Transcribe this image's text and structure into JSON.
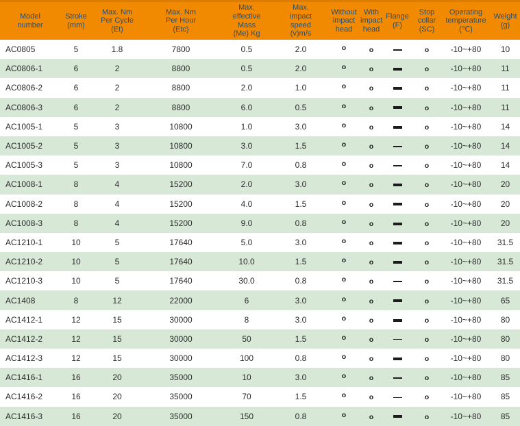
{
  "colors": {
    "header_bg": "#F18A01",
    "header_top_line": "#DC7C00",
    "header_text": "#2E4D66",
    "row_bg": "#FFFFFF",
    "row_alt_bg": "#D7E8D6",
    "data_text": "#2B2B2B",
    "mark_color": "#1C1C1C",
    "dash_color": "#1C1C1C"
  },
  "table": {
    "columns": [
      {
        "key": "model",
        "label": "Model\nnumber"
      },
      {
        "key": "stroke",
        "label": "Stroke\n(mm)"
      },
      {
        "key": "cycle",
        "label": "Max. Nm\nPer Cycle\n(Et)"
      },
      {
        "key": "hour",
        "label": "Max. Nm\nPer Hour\n(Etc)"
      },
      {
        "key": "mass",
        "label": "Max.\neffective\nMass\n(Me) Kg"
      },
      {
        "key": "speed",
        "label": "Max.\nimpact\nspeed\n(v)m/s"
      },
      {
        "key": "without",
        "label": "Without\nimpact\nhead"
      },
      {
        "key": "with",
        "label": "With\nimpact\nhead"
      },
      {
        "key": "flange",
        "label": "Flange\n(F)"
      },
      {
        "key": "stop",
        "label": "Stop\ncollar\n(SC)"
      },
      {
        "key": "temp",
        "label": "Operating\ntemperature\n(℃)"
      },
      {
        "key": "weight",
        "label": "Weight\n(g)"
      }
    ],
    "rows": [
      {
        "model": "AC0805",
        "stroke": "5",
        "cycle": "1.8",
        "hour": "7800",
        "mass": "0.5",
        "speed": "2.0",
        "without": "o",
        "with": "o",
        "flange": "thin",
        "stop": "o",
        "temp": "-10~+80",
        "weight": "10"
      },
      {
        "model": "AC0806-1",
        "stroke": "6",
        "cycle": "2",
        "hour": "8800",
        "mass": "0.5",
        "speed": "2.0",
        "without": "o",
        "with": "o",
        "flange": "bold",
        "stop": "o",
        "temp": "-10~+80",
        "weight": "11"
      },
      {
        "model": "AC0806-2",
        "stroke": "6",
        "cycle": "2",
        "hour": "8800",
        "mass": "2.0",
        "speed": "1.0",
        "without": "o",
        "with": "o",
        "flange": "bold",
        "stop": "o",
        "temp": "-10~+80",
        "weight": "11"
      },
      {
        "model": "AC0806-3",
        "stroke": "6",
        "cycle": "2",
        "hour": "8800",
        "mass": "6.0",
        "speed": "0.5",
        "without": "o",
        "with": "o",
        "flange": "bold",
        "stop": "o",
        "temp": "-10~+80",
        "weight": "11"
      },
      {
        "model": "AC1005-1",
        "stroke": "5",
        "cycle": "3",
        "hour": "10800",
        "mass": "1.0",
        "speed": "3.0",
        "without": "o",
        "with": "o",
        "flange": "bold",
        "stop": "o",
        "temp": "-10~+80",
        "weight": "14"
      },
      {
        "model": "AC1005-2",
        "stroke": "5",
        "cycle": "3",
        "hour": "10800",
        "mass": "3.0",
        "speed": "1.5",
        "without": "o",
        "with": "o",
        "flange": "thin",
        "stop": "o",
        "temp": "-10~+80",
        "weight": "14"
      },
      {
        "model": "AC1005-3",
        "stroke": "5",
        "cycle": "3",
        "hour": "10800",
        "mass": "7.0",
        "speed": "0.8",
        "without": "o",
        "with": "o",
        "flange": "thin",
        "stop": "o",
        "temp": "-10~+80",
        "weight": "14"
      },
      {
        "model": "AC1008-1",
        "stroke": "8",
        "cycle": "4",
        "hour": "15200",
        "mass": "2.0",
        "speed": "3.0",
        "without": "o",
        "with": "o",
        "flange": "bold",
        "stop": "o",
        "temp": "-10~+80",
        "weight": "20"
      },
      {
        "model": "AC1008-2",
        "stroke": "8",
        "cycle": "4",
        "hour": "15200",
        "mass": "4.0",
        "speed": "1.5",
        "without": "o",
        "with": "o",
        "flange": "bold",
        "stop": "o",
        "temp": "-10~+80",
        "weight": "20"
      },
      {
        "model": "AC1008-3",
        "stroke": "8",
        "cycle": "4",
        "hour": "15200",
        "mass": "9.0",
        "speed": "0.8",
        "without": "o",
        "with": "o",
        "flange": "bold",
        "stop": "o",
        "temp": "-10~+80",
        "weight": "20"
      },
      {
        "model": "AC1210-1",
        "stroke": "10",
        "cycle": "5",
        "hour": "17640",
        "mass": "5.0",
        "speed": "3.0",
        "without": "o",
        "with": "o",
        "flange": "bold",
        "stop": "o",
        "temp": "-10~+80",
        "weight": "31.5"
      },
      {
        "model": "AC1210-2",
        "stroke": "10",
        "cycle": "5",
        "hour": "17640",
        "mass": "10.0",
        "speed": "1.5",
        "without": "o",
        "with": "o",
        "flange": "bold",
        "stop": "o",
        "temp": "-10~+80",
        "weight": "31.5"
      },
      {
        "model": "AC1210-3",
        "stroke": "10",
        "cycle": "5",
        "hour": "17640",
        "mass": "30.0",
        "speed": "0.8",
        "without": "o",
        "with": "o",
        "flange": "thin",
        "stop": "o",
        "temp": "-10~+80",
        "weight": "31.5"
      },
      {
        "model": "AC1408",
        "stroke": "8",
        "cycle": "12",
        "hour": "22000",
        "mass": "6",
        "speed": "3.0",
        "without": "o",
        "with": "o",
        "flange": "bold",
        "stop": "o",
        "temp": "-10~+80",
        "weight": "65"
      },
      {
        "model": "AC1412-1",
        "stroke": "12",
        "cycle": "15",
        "hour": "30000",
        "mass": "8",
        "speed": "3.0",
        "without": "o",
        "with": "o",
        "flange": "bold",
        "stop": "o",
        "temp": "-10~+80",
        "weight": "80"
      },
      {
        "model": "AC1412-2",
        "stroke": "12",
        "cycle": "15",
        "hour": "30000",
        "mass": "50",
        "speed": "1.5",
        "without": "o",
        "with": "o",
        "flange": "thin",
        "stop": "o",
        "temp": "-10~+80",
        "weight": "80"
      },
      {
        "model": "AC1412-3",
        "stroke": "12",
        "cycle": "15",
        "hour": "30000",
        "mass": "100",
        "speed": "0.8",
        "without": "o",
        "with": "o",
        "flange": "bold",
        "stop": "o",
        "temp": "-10~+80",
        "weight": "80"
      },
      {
        "model": "AC1416-1",
        "stroke": "16",
        "cycle": "20",
        "hour": "35000",
        "mass": "10",
        "speed": "3.0",
        "without": "o",
        "with": "o",
        "flange": "thin",
        "stop": "o",
        "temp": "-10~+80",
        "weight": "85"
      },
      {
        "model": "AC1416-2",
        "stroke": "16",
        "cycle": "20",
        "hour": "35000",
        "mass": "70",
        "speed": "1.5",
        "without": "o",
        "with": "o",
        "flange": "thin",
        "stop": "o",
        "temp": "-10~+80",
        "weight": "85"
      },
      {
        "model": "AC1416-3",
        "stroke": "16",
        "cycle": "20",
        "hour": "35000",
        "mass": "150",
        "speed": "0.8",
        "without": "o",
        "with": "o",
        "flange": "bold",
        "stop": "o",
        "temp": "-10~+80",
        "weight": "85"
      }
    ]
  }
}
